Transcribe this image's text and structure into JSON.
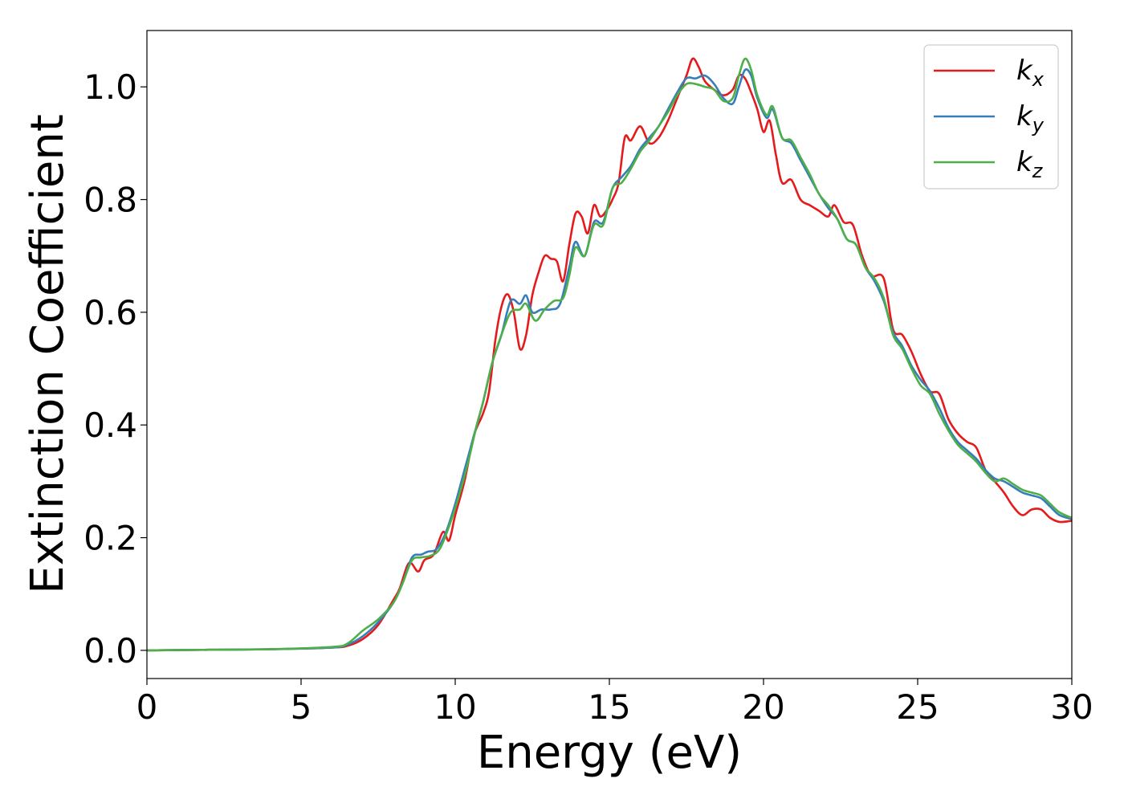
{
  "chart_data": {
    "type": "line",
    "title": "",
    "xlabel": "Energy (eV)",
    "ylabel": "Extinction Coefficient",
    "xlim": [
      0,
      30
    ],
    "ylim": [
      -0.05,
      1.1
    ],
    "xticks": [
      0,
      5,
      10,
      15,
      20,
      25,
      30
    ],
    "xtick_labels": [
      "0",
      "5",
      "10",
      "15",
      "20",
      "25",
      "30"
    ],
    "yticks": [
      0.0,
      0.2,
      0.4,
      0.6,
      0.8,
      1.0
    ],
    "ytick_labels": [
      "0.0",
      "0.2",
      "0.4",
      "0.6",
      "0.8",
      "1.0"
    ],
    "grid": false,
    "legend_position": "top-right",
    "series": [
      {
        "name": "k_x",
        "label_base": "k",
        "label_sub": "x",
        "color": "#e41a1c",
        "points": [
          [
            0,
            0.0
          ],
          [
            2,
            0.001
          ],
          [
            4,
            0.002
          ],
          [
            6,
            0.005
          ],
          [
            6.5,
            0.008
          ],
          [
            7,
            0.02
          ],
          [
            7.5,
            0.045
          ],
          [
            8,
            0.09
          ],
          [
            8.2,
            0.11
          ],
          [
            8.5,
            0.155
          ],
          [
            8.8,
            0.14
          ],
          [
            9,
            0.16
          ],
          [
            9.3,
            0.17
          ],
          [
            9.6,
            0.21
          ],
          [
            9.8,
            0.195
          ],
          [
            10,
            0.24
          ],
          [
            10.3,
            0.3
          ],
          [
            10.6,
            0.38
          ],
          [
            10.9,
            0.42
          ],
          [
            11.1,
            0.46
          ],
          [
            11.3,
            0.55
          ],
          [
            11.5,
            0.61
          ],
          [
            11.7,
            0.632
          ],
          [
            11.9,
            0.6
          ],
          [
            12.1,
            0.535
          ],
          [
            12.3,
            0.56
          ],
          [
            12.5,
            0.63
          ],
          [
            12.7,
            0.67
          ],
          [
            12.9,
            0.7
          ],
          [
            13.1,
            0.695
          ],
          [
            13.3,
            0.69
          ],
          [
            13.5,
            0.655
          ],
          [
            13.7,
            0.72
          ],
          [
            13.9,
            0.775
          ],
          [
            14.1,
            0.77
          ],
          [
            14.3,
            0.74
          ],
          [
            14.5,
            0.79
          ],
          [
            14.7,
            0.77
          ],
          [
            14.9,
            0.78
          ],
          [
            15.1,
            0.8
          ],
          [
            15.3,
            0.83
          ],
          [
            15.5,
            0.91
          ],
          [
            15.7,
            0.905
          ],
          [
            16,
            0.93
          ],
          [
            16.3,
            0.9
          ],
          [
            16.6,
            0.91
          ],
          [
            16.9,
            0.94
          ],
          [
            17.2,
            0.98
          ],
          [
            17.5,
            1.02
          ],
          [
            17.7,
            1.05
          ],
          [
            17.9,
            1.035
          ],
          [
            18.1,
            1.01
          ],
          [
            18.4,
            0.995
          ],
          [
            18.7,
            0.985
          ],
          [
            19,
            0.995
          ],
          [
            19.2,
            1.02
          ],
          [
            19.4,
            1.015
          ],
          [
            19.6,
            0.99
          ],
          [
            19.8,
            0.96
          ],
          [
            20,
            0.92
          ],
          [
            20.2,
            0.94
          ],
          [
            20.4,
            0.88
          ],
          [
            20.6,
            0.83
          ],
          [
            20.9,
            0.835
          ],
          [
            21.2,
            0.8
          ],
          [
            21.5,
            0.79
          ],
          [
            21.8,
            0.78
          ],
          [
            22.1,
            0.77
          ],
          [
            22.3,
            0.79
          ],
          [
            22.6,
            0.76
          ],
          [
            22.9,
            0.755
          ],
          [
            23.2,
            0.7
          ],
          [
            23.5,
            0.665
          ],
          [
            23.9,
            0.66
          ],
          [
            24.2,
            0.57
          ],
          [
            24.5,
            0.56
          ],
          [
            24.8,
            0.53
          ],
          [
            25.1,
            0.49
          ],
          [
            25.4,
            0.46
          ],
          [
            25.7,
            0.455
          ],
          [
            26,
            0.41
          ],
          [
            26.3,
            0.385
          ],
          [
            26.6,
            0.37
          ],
          [
            26.9,
            0.36
          ],
          [
            27.2,
            0.32
          ],
          [
            27.5,
            0.3
          ],
          [
            27.8,
            0.28
          ],
          [
            28.1,
            0.255
          ],
          [
            28.4,
            0.24
          ],
          [
            28.7,
            0.25
          ],
          [
            29,
            0.25
          ],
          [
            29.3,
            0.235
          ],
          [
            29.6,
            0.228
          ],
          [
            30,
            0.23
          ]
        ]
      },
      {
        "name": "k_y",
        "label_base": "k",
        "label_sub": "y",
        "color": "#377eb8",
        "points": [
          [
            0,
            0.0
          ],
          [
            2,
            0.001
          ],
          [
            4,
            0.002
          ],
          [
            6,
            0.005
          ],
          [
            6.5,
            0.01
          ],
          [
            7,
            0.025
          ],
          [
            7.5,
            0.05
          ],
          [
            8,
            0.085
          ],
          [
            8.3,
            0.12
          ],
          [
            8.6,
            0.165
          ],
          [
            8.9,
            0.17
          ],
          [
            9.1,
            0.175
          ],
          [
            9.4,
            0.18
          ],
          [
            9.7,
            0.21
          ],
          [
            10,
            0.26
          ],
          [
            10.3,
            0.32
          ],
          [
            10.6,
            0.38
          ],
          [
            10.9,
            0.44
          ],
          [
            11.2,
            0.51
          ],
          [
            11.5,
            0.56
          ],
          [
            11.8,
            0.62
          ],
          [
            12.1,
            0.615
          ],
          [
            12.3,
            0.63
          ],
          [
            12.5,
            0.6
          ],
          [
            12.8,
            0.605
          ],
          [
            13.1,
            0.605
          ],
          [
            13.4,
            0.615
          ],
          [
            13.7,
            0.68
          ],
          [
            13.9,
            0.725
          ],
          [
            14.2,
            0.7
          ],
          [
            14.5,
            0.76
          ],
          [
            14.8,
            0.76
          ],
          [
            15.1,
            0.82
          ],
          [
            15.4,
            0.84
          ],
          [
            15.7,
            0.86
          ],
          [
            16,
            0.89
          ],
          [
            16.3,
            0.91
          ],
          [
            16.6,
            0.93
          ],
          [
            16.9,
            0.96
          ],
          [
            17.2,
            0.99
          ],
          [
            17.5,
            1.015
          ],
          [
            17.8,
            1.015
          ],
          [
            18.1,
            1.02
          ],
          [
            18.4,
            1.005
          ],
          [
            18.7,
            0.98
          ],
          [
            19,
            0.97
          ],
          [
            19.2,
            1.0
          ],
          [
            19.4,
            1.03
          ],
          [
            19.6,
            1.02
          ],
          [
            19.8,
            0.98
          ],
          [
            20.1,
            0.945
          ],
          [
            20.3,
            0.96
          ],
          [
            20.6,
            0.91
          ],
          [
            20.9,
            0.9
          ],
          [
            21.2,
            0.87
          ],
          [
            21.5,
            0.84
          ],
          [
            21.8,
            0.81
          ],
          [
            22.1,
            0.785
          ],
          [
            22.4,
            0.765
          ],
          [
            22.7,
            0.73
          ],
          [
            23,
            0.72
          ],
          [
            23.3,
            0.68
          ],
          [
            23.6,
            0.655
          ],
          [
            23.9,
            0.62
          ],
          [
            24.2,
            0.565
          ],
          [
            24.5,
            0.54
          ],
          [
            24.8,
            0.505
          ],
          [
            25.1,
            0.48
          ],
          [
            25.4,
            0.46
          ],
          [
            25.7,
            0.43
          ],
          [
            26,
            0.395
          ],
          [
            26.3,
            0.37
          ],
          [
            26.6,
            0.355
          ],
          [
            26.9,
            0.34
          ],
          [
            27.2,
            0.32
          ],
          [
            27.5,
            0.305
          ],
          [
            27.8,
            0.3
          ],
          [
            28.1,
            0.29
          ],
          [
            28.4,
            0.28
          ],
          [
            28.7,
            0.275
          ],
          [
            29,
            0.27
          ],
          [
            29.3,
            0.255
          ],
          [
            29.6,
            0.24
          ],
          [
            30,
            0.233
          ]
        ]
      },
      {
        "name": "k_z",
        "label_base": "k",
        "label_sub": "z",
        "color": "#4daf4a",
        "points": [
          [
            0,
            0.0
          ],
          [
            2,
            0.001
          ],
          [
            4,
            0.002
          ],
          [
            6,
            0.006
          ],
          [
            6.5,
            0.012
          ],
          [
            7,
            0.035
          ],
          [
            7.5,
            0.055
          ],
          [
            8,
            0.085
          ],
          [
            8.3,
            0.12
          ],
          [
            8.6,
            0.16
          ],
          [
            8.9,
            0.165
          ],
          [
            9.2,
            0.168
          ],
          [
            9.5,
            0.18
          ],
          [
            9.8,
            0.22
          ],
          [
            10.1,
            0.27
          ],
          [
            10.4,
            0.33
          ],
          [
            10.7,
            0.4
          ],
          [
            10.9,
            0.44
          ],
          [
            11.2,
            0.51
          ],
          [
            11.5,
            0.56
          ],
          [
            11.8,
            0.6
          ],
          [
            12.1,
            0.605
          ],
          [
            12.3,
            0.615
          ],
          [
            12.6,
            0.585
          ],
          [
            12.9,
            0.605
          ],
          [
            13.2,
            0.62
          ],
          [
            13.5,
            0.625
          ],
          [
            13.7,
            0.665
          ],
          [
            13.9,
            0.715
          ],
          [
            14.2,
            0.7
          ],
          [
            14.5,
            0.755
          ],
          [
            14.8,
            0.755
          ],
          [
            15.1,
            0.82
          ],
          [
            15.4,
            0.83
          ],
          [
            15.7,
            0.855
          ],
          [
            16,
            0.885
          ],
          [
            16.3,
            0.905
          ],
          [
            16.6,
            0.93
          ],
          [
            16.9,
            0.955
          ],
          [
            17.2,
            0.985
          ],
          [
            17.5,
            1.005
          ],
          [
            17.8,
            1.005
          ],
          [
            18.1,
            1.0
          ],
          [
            18.4,
            0.995
          ],
          [
            18.7,
            0.975
          ],
          [
            19,
            0.98
          ],
          [
            19.2,
            1.02
          ],
          [
            19.4,
            1.05
          ],
          [
            19.6,
            1.03
          ],
          [
            19.8,
            0.985
          ],
          [
            20.1,
            0.95
          ],
          [
            20.3,
            0.965
          ],
          [
            20.6,
            0.91
          ],
          [
            20.9,
            0.905
          ],
          [
            21.2,
            0.875
          ],
          [
            21.5,
            0.845
          ],
          [
            21.8,
            0.81
          ],
          [
            22.1,
            0.79
          ],
          [
            22.4,
            0.765
          ],
          [
            22.7,
            0.73
          ],
          [
            23,
            0.72
          ],
          [
            23.3,
            0.68
          ],
          [
            23.6,
            0.66
          ],
          [
            23.9,
            0.625
          ],
          [
            24.2,
            0.56
          ],
          [
            24.5,
            0.535
          ],
          [
            24.8,
            0.5
          ],
          [
            25.1,
            0.47
          ],
          [
            25.4,
            0.455
          ],
          [
            25.7,
            0.42
          ],
          [
            26,
            0.39
          ],
          [
            26.3,
            0.365
          ],
          [
            26.6,
            0.35
          ],
          [
            26.9,
            0.335
          ],
          [
            27.2,
            0.315
          ],
          [
            27.5,
            0.3
          ],
          [
            27.8,
            0.305
          ],
          [
            28.1,
            0.295
          ],
          [
            28.4,
            0.285
          ],
          [
            28.7,
            0.28
          ],
          [
            29,
            0.275
          ],
          [
            29.3,
            0.26
          ],
          [
            29.6,
            0.245
          ],
          [
            30,
            0.235
          ]
        ]
      }
    ]
  }
}
